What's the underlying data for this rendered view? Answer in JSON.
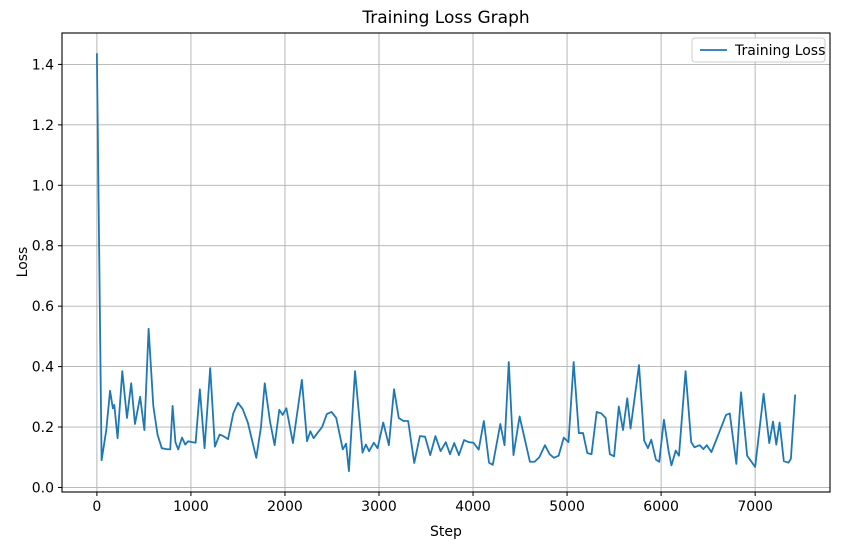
{
  "colors": {
    "line": "#1f77b4",
    "grid": "#b0b0b0",
    "spine": "#000000",
    "text": "#000000",
    "background": "#ffffff",
    "legend_border": "#cccccc"
  },
  "chart_data": {
    "type": "line",
    "title": "Training Loss Graph",
    "xlabel": "Step",
    "ylabel": "Loss",
    "grid": true,
    "legend_position": "upper right",
    "xlim": [
      -371,
      7796
    ],
    "ylim": [
      -0.015,
      1.504
    ],
    "xticks": [
      0,
      1000,
      2000,
      3000,
      4000,
      5000,
      6000,
      7000
    ],
    "xtick_labels": [
      "0",
      "1000",
      "2000",
      "3000",
      "4000",
      "5000",
      "6000",
      "7000"
    ],
    "yticks": [
      0.0,
      0.2,
      0.4,
      0.6,
      0.8,
      1.0,
      1.2,
      1.4
    ],
    "ytick_labels": [
      "0.0",
      "0.2",
      "0.4",
      "0.6",
      "0.8",
      "1.0",
      "1.2",
      "1.4"
    ],
    "series": [
      {
        "name": "Training Loss",
        "color": "#1f77b4",
        "points": [
          [
            0,
            1.435
          ],
          [
            50,
            0.09
          ],
          [
            100,
            0.19
          ],
          [
            140,
            0.32
          ],
          [
            170,
            0.262
          ],
          [
            185,
            0.273
          ],
          [
            220,
            0.163
          ],
          [
            270,
            0.385
          ],
          [
            320,
            0.23
          ],
          [
            365,
            0.345
          ],
          [
            405,
            0.21
          ],
          [
            460,
            0.3
          ],
          [
            505,
            0.19
          ],
          [
            550,
            0.525
          ],
          [
            600,
            0.27
          ],
          [
            645,
            0.175
          ],
          [
            690,
            0.13
          ],
          [
            740,
            0.127
          ],
          [
            780,
            0.126
          ],
          [
            805,
            0.27
          ],
          [
            835,
            0.15
          ],
          [
            865,
            0.126
          ],
          [
            905,
            0.165
          ],
          [
            940,
            0.142
          ],
          [
            970,
            0.153
          ],
          [
            1010,
            0.15
          ],
          [
            1050,
            0.148
          ],
          [
            1095,
            0.325
          ],
          [
            1145,
            0.13
          ],
          [
            1205,
            0.395
          ],
          [
            1255,
            0.135
          ],
          [
            1305,
            0.175
          ],
          [
            1345,
            0.17
          ],
          [
            1395,
            0.16
          ],
          [
            1450,
            0.245
          ],
          [
            1500,
            0.28
          ],
          [
            1550,
            0.26
          ],
          [
            1605,
            0.215
          ],
          [
            1655,
            0.15
          ],
          [
            1695,
            0.098
          ],
          [
            1745,
            0.2
          ],
          [
            1785,
            0.345
          ],
          [
            1840,
            0.22
          ],
          [
            1890,
            0.14
          ],
          [
            1940,
            0.257
          ],
          [
            1975,
            0.24
          ],
          [
            2015,
            0.262
          ],
          [
            2085,
            0.147
          ],
          [
            2180,
            0.356
          ],
          [
            2235,
            0.153
          ],
          [
            2270,
            0.186
          ],
          [
            2305,
            0.163
          ],
          [
            2345,
            0.18
          ],
          [
            2395,
            0.2
          ],
          [
            2445,
            0.243
          ],
          [
            2495,
            0.25
          ],
          [
            2545,
            0.23
          ],
          [
            2615,
            0.126
          ],
          [
            2650,
            0.145
          ],
          [
            2680,
            0.054
          ],
          [
            2745,
            0.385
          ],
          [
            2825,
            0.115
          ],
          [
            2860,
            0.142
          ],
          [
            2895,
            0.12
          ],
          [
            2945,
            0.148
          ],
          [
            2985,
            0.13
          ],
          [
            3045,
            0.215
          ],
          [
            3105,
            0.14
          ],
          [
            3160,
            0.325
          ],
          [
            3210,
            0.23
          ],
          [
            3260,
            0.22
          ],
          [
            3310,
            0.22
          ],
          [
            3375,
            0.081
          ],
          [
            3435,
            0.17
          ],
          [
            3490,
            0.168
          ],
          [
            3545,
            0.107
          ],
          [
            3600,
            0.17
          ],
          [
            3655,
            0.12
          ],
          [
            3710,
            0.15
          ],
          [
            3755,
            0.11
          ],
          [
            3800,
            0.147
          ],
          [
            3850,
            0.107
          ],
          [
            3905,
            0.157
          ],
          [
            3955,
            0.15
          ],
          [
            4005,
            0.148
          ],
          [
            4060,
            0.125
          ],
          [
            4115,
            0.22
          ],
          [
            4170,
            0.082
          ],
          [
            4210,
            0.075
          ],
          [
            4290,
            0.21
          ],
          [
            4335,
            0.14
          ],
          [
            4380,
            0.415
          ],
          [
            4430,
            0.107
          ],
          [
            4495,
            0.235
          ],
          [
            4550,
            0.16
          ],
          [
            4605,
            0.085
          ],
          [
            4655,
            0.085
          ],
          [
            4705,
            0.1
          ],
          [
            4765,
            0.14
          ],
          [
            4815,
            0.11
          ],
          [
            4860,
            0.098
          ],
          [
            4910,
            0.105
          ],
          [
            4965,
            0.165
          ],
          [
            5015,
            0.15
          ],
          [
            5070,
            0.415
          ],
          [
            5125,
            0.18
          ],
          [
            5170,
            0.18
          ],
          [
            5215,
            0.114
          ],
          [
            5260,
            0.11
          ],
          [
            5315,
            0.25
          ],
          [
            5365,
            0.245
          ],
          [
            5410,
            0.23
          ],
          [
            5455,
            0.11
          ],
          [
            5500,
            0.103
          ],
          [
            5550,
            0.268
          ],
          [
            5595,
            0.19
          ],
          [
            5640,
            0.295
          ],
          [
            5675,
            0.195
          ],
          [
            5765,
            0.405
          ],
          [
            5820,
            0.155
          ],
          [
            5860,
            0.13
          ],
          [
            5895,
            0.158
          ],
          [
            5945,
            0.092
          ],
          [
            5980,
            0.085
          ],
          [
            6030,
            0.224
          ],
          [
            6080,
            0.12
          ],
          [
            6110,
            0.073
          ],
          [
            6155,
            0.122
          ],
          [
            6190,
            0.105
          ],
          [
            6260,
            0.385
          ],
          [
            6320,
            0.15
          ],
          [
            6355,
            0.133
          ],
          [
            6410,
            0.14
          ],
          [
            6450,
            0.127
          ],
          [
            6485,
            0.14
          ],
          [
            6535,
            0.117
          ],
          [
            6605,
            0.172
          ],
          [
            6690,
            0.24
          ],
          [
            6730,
            0.245
          ],
          [
            6800,
            0.078
          ],
          [
            6850,
            0.315
          ],
          [
            6915,
            0.105
          ],
          [
            7000,
            0.068
          ],
          [
            7090,
            0.31
          ],
          [
            7150,
            0.147
          ],
          [
            7190,
            0.218
          ],
          [
            7225,
            0.142
          ],
          [
            7260,
            0.215
          ],
          [
            7305,
            0.087
          ],
          [
            7355,
            0.082
          ],
          [
            7380,
            0.095
          ],
          [
            7425,
            0.305
          ]
        ]
      }
    ]
  }
}
